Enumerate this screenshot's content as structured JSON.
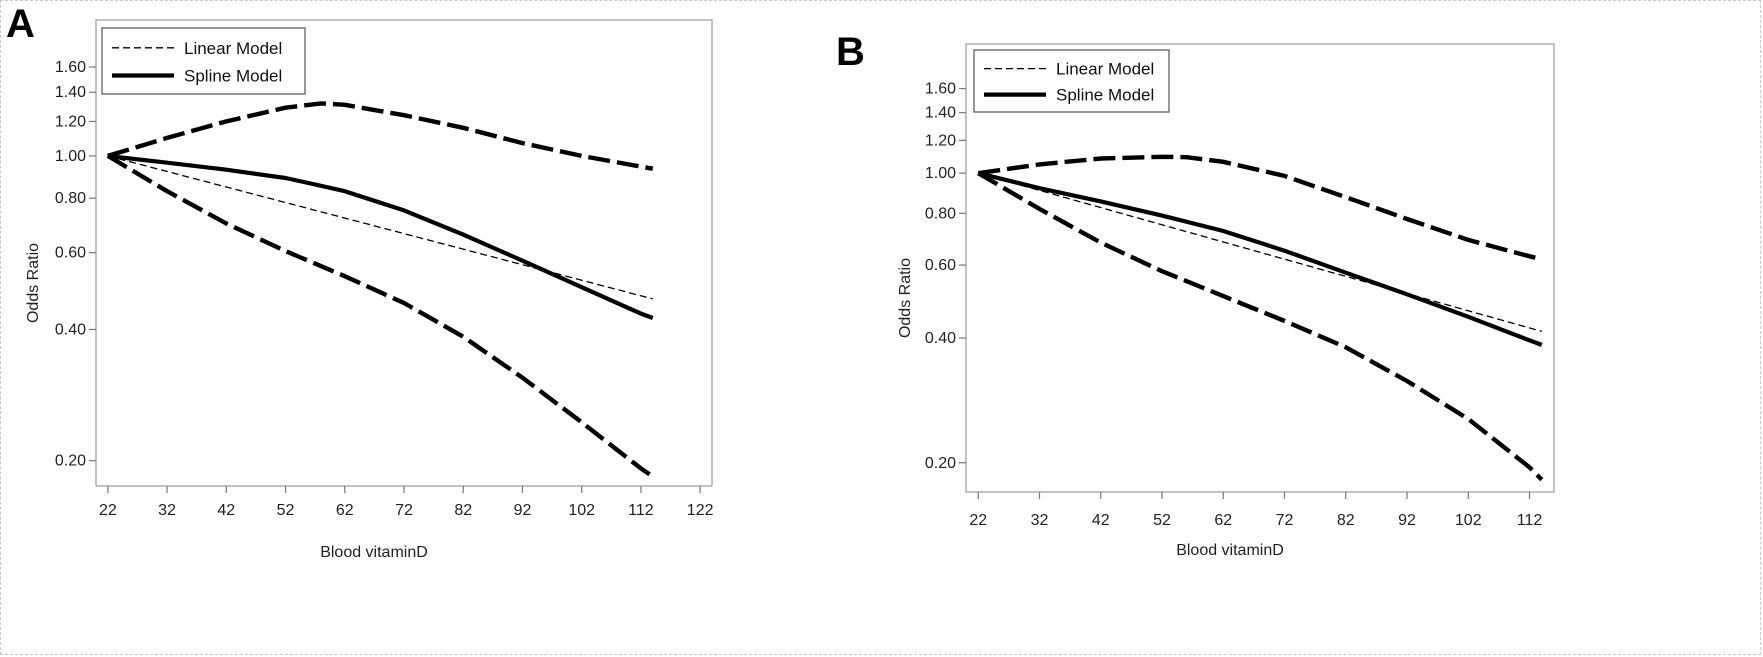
{
  "panels": [
    {
      "letter": "A",
      "legend": {
        "linear": "Linear Model",
        "spline": "Spline Model"
      },
      "chart_data": {
        "type": "line",
        "xlabel": "Blood vitaminD",
        "ylabel": "Odds Ratio",
        "y_scale": "log",
        "xlim": [
          20,
          124
        ],
        "ylim": [
          0.175,
          2.05
        ],
        "xticks": [
          22,
          32,
          42,
          52,
          62,
          72,
          82,
          92,
          102,
          112,
          122
        ],
        "yticks": [
          0.2,
          0.4,
          0.6,
          0.8,
          1.0,
          1.2,
          1.4,
          1.6
        ],
        "ytick_labels": [
          "0.20",
          "0.40",
          "0.60",
          "0.80",
          "1.00",
          "1.20",
          "1.40",
          "1.60"
        ],
        "series": [
          {
            "name": "Linear Model",
            "style": "thin-dashed",
            "x": [
              22,
              114
            ],
            "y": [
              1.0,
              0.47
            ]
          },
          {
            "name": "Spline Model",
            "style": "thick-solid",
            "x": [
              22,
              32,
              42,
              52,
              57,
              62,
              72,
              82,
              92,
              102,
              112,
              114
            ],
            "y": [
              1.0,
              0.965,
              0.93,
              0.89,
              0.86,
              0.83,
              0.75,
              0.66,
              0.575,
              0.5,
              0.435,
              0.425
            ]
          },
          {
            "style": "thick-dashed",
            "x": [
              22,
              32,
              42,
              52,
              58,
              62,
              72,
              82,
              92,
              102,
              112,
              114
            ],
            "y": [
              1.0,
              1.1,
              1.2,
              1.29,
              1.32,
              1.31,
              1.24,
              1.16,
              1.07,
              1.0,
              0.945,
              0.935
            ]
          },
          {
            "style": "thick-dashed",
            "x": [
              22,
              32,
              42,
              52,
              62,
              72,
              82,
              92,
              102,
              112,
              114
            ],
            "y": [
              1.0,
              0.83,
              0.7,
              0.605,
              0.53,
              0.46,
              0.385,
              0.31,
              0.245,
              0.192,
              0.184
            ]
          }
        ]
      }
    },
    {
      "letter": "B",
      "legend": {
        "linear": "Linear Model",
        "spline": "Spline Model"
      },
      "chart_data": {
        "type": "line",
        "xlabel": "Blood vitaminD",
        "ylabel": "Odds Ratio",
        "y_scale": "log",
        "xlim": [
          20,
          116
        ],
        "ylim": [
          0.17,
          2.05
        ],
        "xticks": [
          22,
          32,
          42,
          52,
          62,
          72,
          82,
          92,
          102,
          112
        ],
        "yticks": [
          0.2,
          0.4,
          0.6,
          0.8,
          1.0,
          1.2,
          1.4,
          1.6
        ],
        "ytick_labels": [
          "0.20",
          "0.40",
          "0.60",
          "0.80",
          "1.00",
          "1.20",
          "1.40",
          "1.60"
        ],
        "series": [
          {
            "name": "Linear Model",
            "style": "thin-dashed",
            "x": [
              22,
              114
            ],
            "y": [
              1.0,
              0.415
            ]
          },
          {
            "name": "Spline Model",
            "style": "thick-solid",
            "x": [
              22,
              32,
              42,
              52,
              62,
              72,
              82,
              92,
              102,
              112,
              114
            ],
            "y": [
              1.0,
              0.92,
              0.855,
              0.79,
              0.725,
              0.65,
              0.575,
              0.51,
              0.45,
              0.395,
              0.385
            ]
          },
          {
            "style": "thick-dashed",
            "x": [
              22,
              32,
              42,
              52,
              56,
              62,
              72,
              82,
              92,
              102,
              112,
              114
            ],
            "y": [
              1.0,
              1.05,
              1.085,
              1.095,
              1.093,
              1.065,
              0.985,
              0.875,
              0.775,
              0.69,
              0.63,
              0.62
            ]
          },
          {
            "style": "thick-dashed",
            "x": [
              22,
              32,
              42,
              52,
              62,
              72,
              82,
              92,
              102,
              112,
              114
            ],
            "y": [
              1.0,
              0.82,
              0.68,
              0.58,
              0.505,
              0.44,
              0.38,
              0.315,
              0.255,
              0.195,
              0.182
            ]
          }
        ]
      }
    }
  ]
}
